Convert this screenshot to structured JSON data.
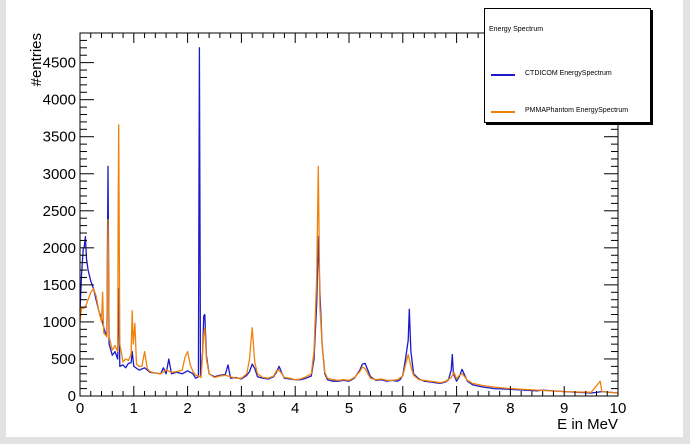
{
  "chart_data": {
    "type": "line",
    "title": "",
    "xlabel": "E in MeV",
    "ylabel": "#entries",
    "xlim": [
      0,
      10
    ],
    "ylim": [
      0,
      4900
    ],
    "x_ticks": [
      0,
      1,
      2,
      3,
      4,
      5,
      6,
      7,
      8,
      9,
      10
    ],
    "y_ticks": [
      0,
      500,
      1000,
      1500,
      2000,
      2500,
      3000,
      3500,
      4000,
      4500
    ],
    "grid": false,
    "legend_position": "top-right",
    "legend": {
      "title": "Energy Spectrum",
      "entries": [
        "CTDICOM EnergySpectrum",
        "PMMAPhantom EnergySpectrum"
      ]
    },
    "series": [
      {
        "name": "CTDICOM EnergySpectrum",
        "color": "#1a1ac8",
        "points": [
          [
            0,
            1150
          ],
          [
            0.03,
            1650
          ],
          [
            0.06,
            1980
          ],
          [
            0.08,
            2020
          ],
          [
            0.1,
            2150
          ],
          [
            0.12,
            1850
          ],
          [
            0.15,
            1700
          ],
          [
            0.2,
            1550
          ],
          [
            0.25,
            1450
          ],
          [
            0.3,
            1300
          ],
          [
            0.35,
            1150
          ],
          [
            0.4,
            1050
          ],
          [
            0.45,
            900
          ],
          [
            0.5,
            800
          ],
          [
            0.52,
            3100
          ],
          [
            0.54,
            700
          ],
          [
            0.6,
            550
          ],
          [
            0.65,
            600
          ],
          [
            0.7,
            500
          ],
          [
            0.72,
            1450
          ],
          [
            0.74,
            400
          ],
          [
            0.8,
            420
          ],
          [
            0.85,
            380
          ],
          [
            0.9,
            440
          ],
          [
            0.95,
            450
          ],
          [
            0.97,
            600
          ],
          [
            1.0,
            400
          ],
          [
            1.1,
            350
          ],
          [
            1.2,
            380
          ],
          [
            1.3,
            320
          ],
          [
            1.4,
            310
          ],
          [
            1.5,
            300
          ],
          [
            1.55,
            380
          ],
          [
            1.6,
            300
          ],
          [
            1.65,
            500
          ],
          [
            1.7,
            300
          ],
          [
            1.8,
            320
          ],
          [
            1.9,
            300
          ],
          [
            2.0,
            340
          ],
          [
            2.1,
            300
          ],
          [
            2.15,
            240
          ],
          [
            2.2,
            260
          ],
          [
            2.22,
            4700
          ],
          [
            2.24,
            280
          ],
          [
            2.28,
            600
          ],
          [
            2.3,
            1080
          ],
          [
            2.32,
            1100
          ],
          [
            2.35,
            550
          ],
          [
            2.4,
            300
          ],
          [
            2.5,
            260
          ],
          [
            2.6,
            280
          ],
          [
            2.7,
            290
          ],
          [
            2.75,
            420
          ],
          [
            2.8,
            240
          ],
          [
            2.9,
            250
          ],
          [
            3.0,
            230
          ],
          [
            3.1,
            280
          ],
          [
            3.15,
            330
          ],
          [
            3.2,
            430
          ],
          [
            3.25,
            370
          ],
          [
            3.3,
            260
          ],
          [
            3.4,
            240
          ],
          [
            3.5,
            230
          ],
          [
            3.6,
            260
          ],
          [
            3.65,
            320
          ],
          [
            3.7,
            400
          ],
          [
            3.75,
            310
          ],
          [
            3.8,
            240
          ],
          [
            3.9,
            230
          ],
          [
            4.0,
            220
          ],
          [
            4.1,
            220
          ],
          [
            4.2,
            240
          ],
          [
            4.3,
            270
          ],
          [
            4.35,
            500
          ],
          [
            4.4,
            1250
          ],
          [
            4.43,
            2150
          ],
          [
            4.46,
            1400
          ],
          [
            4.5,
            700
          ],
          [
            4.55,
            300
          ],
          [
            4.6,
            220
          ],
          [
            4.7,
            200
          ],
          [
            4.8,
            200
          ],
          [
            4.9,
            210
          ],
          [
            5.0,
            200
          ],
          [
            5.1,
            240
          ],
          [
            5.2,
            350
          ],
          [
            5.25,
            430
          ],
          [
            5.3,
            440
          ],
          [
            5.35,
            350
          ],
          [
            5.4,
            260
          ],
          [
            5.5,
            210
          ],
          [
            5.6,
            220
          ],
          [
            5.7,
            200
          ],
          [
            5.8,
            210
          ],
          [
            5.9,
            200
          ],
          [
            5.95,
            220
          ],
          [
            6.0,
            280
          ],
          [
            6.05,
            500
          ],
          [
            6.1,
            750
          ],
          [
            6.12,
            1170
          ],
          [
            6.15,
            600
          ],
          [
            6.2,
            300
          ],
          [
            6.3,
            230
          ],
          [
            6.4,
            200
          ],
          [
            6.5,
            190
          ],
          [
            6.6,
            180
          ],
          [
            6.7,
            170
          ],
          [
            6.8,
            190
          ],
          [
            6.85,
            220
          ],
          [
            6.9,
            350
          ],
          [
            6.92,
            560
          ],
          [
            6.94,
            300
          ],
          [
            7.0,
            200
          ],
          [
            7.05,
            260
          ],
          [
            7.1,
            360
          ],
          [
            7.15,
            280
          ],
          [
            7.2,
            200
          ],
          [
            7.3,
            150
          ],
          [
            7.5,
            120
          ],
          [
            7.7,
            100
          ],
          [
            8.0,
            90
          ],
          [
            8.5,
            70
          ],
          [
            8.6,
            80
          ],
          [
            9.0,
            60
          ],
          [
            9.5,
            40
          ],
          [
            9.7,
            60
          ],
          [
            10.0,
            40
          ]
        ]
      },
      {
        "name": "PMMAPhantom EnergySpectrum",
        "color": "#f0820a",
        "points": [
          [
            0,
            1000
          ],
          [
            0.03,
            1200
          ],
          [
            0.06,
            1180
          ],
          [
            0.1,
            1200
          ],
          [
            0.15,
            1300
          ],
          [
            0.2,
            1400
          ],
          [
            0.25,
            1450
          ],
          [
            0.3,
            1350
          ],
          [
            0.35,
            1150
          ],
          [
            0.4,
            1000
          ],
          [
            0.42,
            1400
          ],
          [
            0.44,
            850
          ],
          [
            0.5,
            800
          ],
          [
            0.52,
            2380
          ],
          [
            0.54,
            800
          ],
          [
            0.6,
            620
          ],
          [
            0.65,
            680
          ],
          [
            0.7,
            600
          ],
          [
            0.71,
            2550
          ],
          [
            0.72,
            3660
          ],
          [
            0.74,
            700
          ],
          [
            0.8,
            460
          ],
          [
            0.85,
            500
          ],
          [
            0.9,
            480
          ],
          [
            0.95,
            560
          ],
          [
            0.97,
            1150
          ],
          [
            0.99,
            700
          ],
          [
            1.02,
            980
          ],
          [
            1.05,
            430
          ],
          [
            1.1,
            400
          ],
          [
            1.15,
            400
          ],
          [
            1.2,
            600
          ],
          [
            1.25,
            370
          ],
          [
            1.3,
            330
          ],
          [
            1.4,
            310
          ],
          [
            1.5,
            300
          ],
          [
            1.6,
            350
          ],
          [
            1.7,
            320
          ],
          [
            1.8,
            330
          ],
          [
            1.9,
            350
          ],
          [
            1.95,
            520
          ],
          [
            2.0,
            600
          ],
          [
            2.05,
            420
          ],
          [
            2.1,
            330
          ],
          [
            2.15,
            280
          ],
          [
            2.2,
            270
          ],
          [
            2.25,
            250
          ],
          [
            2.3,
            820
          ],
          [
            2.32,
            920
          ],
          [
            2.35,
            500
          ],
          [
            2.4,
            300
          ],
          [
            2.5,
            250
          ],
          [
            2.6,
            270
          ],
          [
            2.7,
            280
          ],
          [
            2.8,
            260
          ],
          [
            2.9,
            240
          ],
          [
            3.0,
            240
          ],
          [
            3.1,
            300
          ],
          [
            3.15,
            500
          ],
          [
            3.2,
            920
          ],
          [
            3.25,
            450
          ],
          [
            3.3,
            300
          ],
          [
            3.4,
            250
          ],
          [
            3.5,
            240
          ],
          [
            3.6,
            270
          ],
          [
            3.65,
            340
          ],
          [
            3.7,
            350
          ],
          [
            3.75,
            300
          ],
          [
            3.8,
            250
          ],
          [
            3.9,
            240
          ],
          [
            4.0,
            220
          ],
          [
            4.1,
            230
          ],
          [
            4.2,
            260
          ],
          [
            4.3,
            300
          ],
          [
            4.35,
            600
          ],
          [
            4.4,
            1600
          ],
          [
            4.43,
            3100
          ],
          [
            4.46,
            1200
          ],
          [
            4.5,
            700
          ],
          [
            4.55,
            320
          ],
          [
            4.6,
            240
          ],
          [
            4.7,
            220
          ],
          [
            4.8,
            210
          ],
          [
            4.9,
            220
          ],
          [
            5.0,
            210
          ],
          [
            5.1,
            250
          ],
          [
            5.2,
            330
          ],
          [
            5.25,
            390
          ],
          [
            5.3,
            370
          ],
          [
            5.35,
            300
          ],
          [
            5.4,
            240
          ],
          [
            5.5,
            220
          ],
          [
            5.6,
            230
          ],
          [
            5.7,
            210
          ],
          [
            5.8,
            210
          ],
          [
            5.9,
            220
          ],
          [
            6.0,
            270
          ],
          [
            6.05,
            420
          ],
          [
            6.1,
            560
          ],
          [
            6.15,
            400
          ],
          [
            6.2,
            280
          ],
          [
            6.3,
            220
          ],
          [
            6.4,
            210
          ],
          [
            6.5,
            200
          ],
          [
            6.6,
            190
          ],
          [
            6.7,
            180
          ],
          [
            6.8,
            200
          ],
          [
            6.9,
            250
          ],
          [
            6.95,
            320
          ],
          [
            7.0,
            230
          ],
          [
            7.05,
            280
          ],
          [
            7.1,
            300
          ],
          [
            7.15,
            260
          ],
          [
            7.2,
            210
          ],
          [
            7.3,
            170
          ],
          [
            7.5,
            140
          ],
          [
            7.7,
            120
          ],
          [
            8.0,
            100
          ],
          [
            8.5,
            80
          ],
          [
            9.0,
            60
          ],
          [
            9.5,
            50
          ],
          [
            9.67,
            200
          ],
          [
            9.7,
            60
          ],
          [
            10.0,
            40
          ]
        ]
      }
    ]
  }
}
